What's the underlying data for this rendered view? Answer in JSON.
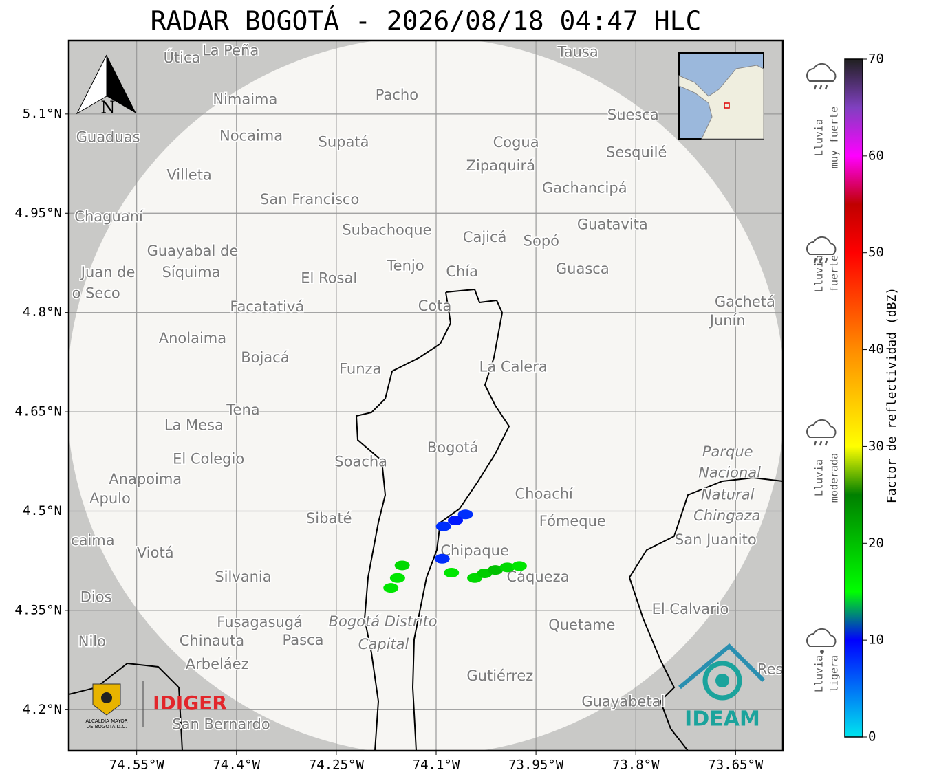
{
  "title": "RADAR BOGOTÁ - 2026/08/18 04:47 HLC",
  "map": {
    "xlim": [
      -74.652,
      -73.579
    ],
    "ylim": [
      4.138,
      5.211
    ],
    "xticks": [
      {
        "value": -74.55,
        "label": "74.55°W"
      },
      {
        "value": -74.4,
        "label": "74.4°W"
      },
      {
        "value": -74.25,
        "label": "74.25°W"
      },
      {
        "value": -74.1,
        "label": "74.1°W"
      },
      {
        "value": -73.95,
        "label": "73.95°W"
      },
      {
        "value": -73.8,
        "label": "73.8°W"
      },
      {
        "value": -73.65,
        "label": "73.65°W"
      }
    ],
    "yticks": [
      {
        "value": 5.1,
        "label": "5.1°N"
      },
      {
        "value": 4.95,
        "label": "4.95°N"
      },
      {
        "value": 4.8,
        "label": "4.8°N"
      },
      {
        "value": 4.65,
        "label": "4.65°N"
      },
      {
        "value": 4.5,
        "label": "4.5°N"
      },
      {
        "value": 4.35,
        "label": "4.35°N"
      },
      {
        "value": 4.2,
        "label": "4.2°N"
      }
    ],
    "places": [
      {
        "name": "Útica",
        "lon": -74.482,
        "lat": 5.184
      },
      {
        "name": "La Peña",
        "lon": -74.409,
        "lat": 5.195
      },
      {
        "name": "Tausa",
        "lon": -73.887,
        "lat": 5.193
      },
      {
        "name": "Pacho",
        "lon": -74.159,
        "lat": 5.128
      },
      {
        "name": "Nimaima",
        "lon": -74.387,
        "lat": 5.121
      },
      {
        "name": "Guaduas",
        "lon": -74.593,
        "lat": 5.064
      },
      {
        "name": "Nocaima",
        "lon": -74.378,
        "lat": 5.066
      },
      {
        "name": "Supatá",
        "lon": -74.239,
        "lat": 5.057
      },
      {
        "name": "Cogua",
        "lon": -73.98,
        "lat": 5.056
      },
      {
        "name": "Suesca",
        "lon": -73.804,
        "lat": 5.098
      },
      {
        "name": "Sesquilé",
        "lon": -73.799,
        "lat": 5.041
      },
      {
        "name": "Zipaquirá",
        "lon": -74.003,
        "lat": 5.021
      },
      {
        "name": "Villeta",
        "lon": -74.471,
        "lat": 5.007
      },
      {
        "name": "Gachancipá",
        "lon": -73.877,
        "lat": 4.987
      },
      {
        "name": "San Francisco",
        "lon": -74.29,
        "lat": 4.97
      },
      {
        "name": "Chaguaní",
        "lon": -74.592,
        "lat": 4.944
      },
      {
        "name": "Guatavita",
        "lon": -73.835,
        "lat": 4.932
      },
      {
        "name": "Subachoque",
        "lon": -74.174,
        "lat": 4.924
      },
      {
        "name": "Cajicá",
        "lon": -74.027,
        "lat": 4.913
      },
      {
        "name": "Sopó",
        "lon": -73.942,
        "lat": 4.907
      },
      {
        "name": "Guayabal de",
        "lon": -74.466,
        "lat": 4.892
      },
      {
        "name": "Síquima",
        "lon": -74.468,
        "lat": 4.86
      },
      {
        "name": "Tenjo",
        "lon": -74.146,
        "lat": 4.87
      },
      {
        "name": "Chía",
        "lon": -74.061,
        "lat": 4.861
      },
      {
        "name": "Guasca",
        "lon": -73.88,
        "lat": 4.865
      },
      {
        "name": "Juan de",
        "lon": -74.593,
        "lat": 4.86
      },
      {
        "name": "o Seco",
        "lon": -74.611,
        "lat": 4.828
      },
      {
        "name": "El Rosal",
        "lon": -74.261,
        "lat": 4.851
      },
      {
        "name": "Cota",
        "lon": -74.102,
        "lat": 4.809
      },
      {
        "name": "Facatativá",
        "lon": -74.354,
        "lat": 4.808
      },
      {
        "name": "Gachetá",
        "lon": -73.636,
        "lat": 4.815
      },
      {
        "name": "Junín",
        "lon": -73.662,
        "lat": 4.787
      },
      {
        "name": "Anolaima",
        "lon": -74.466,
        "lat": 4.76
      },
      {
        "name": "Bojacá",
        "lon": -74.357,
        "lat": 4.731
      },
      {
        "name": "Funza",
        "lon": -74.214,
        "lat": 4.714
      },
      {
        "name": "La Calera",
        "lon": -73.984,
        "lat": 4.717
      },
      {
        "name": "Tena",
        "lon": -74.39,
        "lat": 4.652
      },
      {
        "name": "La Mesa",
        "lon": -74.464,
        "lat": 4.629
      },
      {
        "name": "Bogotá",
        "lon": -74.075,
        "lat": 4.595,
        "kind": "capital"
      },
      {
        "name": "Soacha",
        "lon": -74.213,
        "lat": 4.574
      },
      {
        "name": "El Colegio",
        "lon": -74.442,
        "lat": 4.578
      },
      {
        "name": "Parque",
        "lon": -73.662,
        "lat": 4.589,
        "kind": "park"
      },
      {
        "name": "Nacional",
        "lon": -73.659,
        "lat": 4.557,
        "kind": "park"
      },
      {
        "name": "Natural",
        "lon": -73.662,
        "lat": 4.524,
        "kind": "park"
      },
      {
        "name": "Chingaza",
        "lon": -73.663,
        "lat": 4.492,
        "kind": "park"
      },
      {
        "name": "Anapoima",
        "lon": -74.537,
        "lat": 4.547
      },
      {
        "name": "Apulo",
        "lon": -74.59,
        "lat": 4.518
      },
      {
        "name": "Choachí",
        "lon": -73.938,
        "lat": 4.525
      },
      {
        "name": "Sibaté",
        "lon": -74.261,
        "lat": 4.488
      },
      {
        "name": "Fómeque",
        "lon": -73.895,
        "lat": 4.484
      },
      {
        "name": "San Juanito",
        "lon": -73.68,
        "lat": 4.456
      },
      {
        "name": "caima",
        "lon": -74.616,
        "lat": 4.455
      },
      {
        "name": "Viotá",
        "lon": -74.522,
        "lat": 4.436
      },
      {
        "name": "Chipaque",
        "lon": -74.042,
        "lat": 4.439
      },
      {
        "name": "Silvania",
        "lon": -74.39,
        "lat": 4.4
      },
      {
        "name": "Cáqueza",
        "lon": -73.947,
        "lat": 4.4
      },
      {
        "name": "Dios",
        "lon": -74.611,
        "lat": 4.369
      },
      {
        "name": "El Calvario",
        "lon": -73.718,
        "lat": 4.351
      },
      {
        "name": "Fusagasugá",
        "lon": -74.365,
        "lat": 4.331
      },
      {
        "name": "Quetame",
        "lon": -73.881,
        "lat": 4.327
      },
      {
        "name": "Bogotá Distrito",
        "lon": -74.18,
        "lat": 4.332,
        "kind": "district"
      },
      {
        "name": "Capital",
        "lon": -74.179,
        "lat": 4.298,
        "kind": "district"
      },
      {
        "name": "Nilo",
        "lon": -74.617,
        "lat": 4.302
      },
      {
        "name": "Chinauta",
        "lon": -74.437,
        "lat": 4.303
      },
      {
        "name": "Pasca",
        "lon": -74.3,
        "lat": 4.304
      },
      {
        "name": "Arbeláez",
        "lon": -74.429,
        "lat": 4.268
      },
      {
        "name": "Gutiérrez",
        "lon": -74.004,
        "lat": 4.25
      },
      {
        "name": "Res",
        "lon": -73.598,
        "lat": 4.26
      },
      {
        "name": "Guayabetal",
        "lon": -73.819,
        "lat": 4.211
      },
      {
        "name": "San Bernardo",
        "lon": -74.423,
        "lat": 4.177
      }
    ],
    "echoes": [
      {
        "lon": -74.042,
        "lat": 4.399,
        "dbz": 18
      },
      {
        "lon": -74.027,
        "lat": 4.406,
        "dbz": 19
      },
      {
        "lon": -74.011,
        "lat": 4.411,
        "dbz": 20
      },
      {
        "lon": -73.993,
        "lat": 4.415,
        "dbz": 18
      },
      {
        "lon": -73.975,
        "lat": 4.417,
        "dbz": 17
      },
      {
        "lon": -74.151,
        "lat": 4.418,
        "dbz": 18
      },
      {
        "lon": -74.158,
        "lat": 4.399,
        "dbz": 17
      },
      {
        "lon": -74.168,
        "lat": 4.384,
        "dbz": 17
      },
      {
        "lon": -74.077,
        "lat": 4.407,
        "dbz": 17
      },
      {
        "lon": -74.091,
        "lat": 4.428,
        "dbz": 8
      },
      {
        "lon": -74.056,
        "lat": 4.495,
        "dbz": 8
      },
      {
        "lon": -74.071,
        "lat": 4.486,
        "dbz": 9
      },
      {
        "lon": -74.089,
        "lat": 4.477,
        "dbz": 8
      }
    ]
  },
  "north_label": "N",
  "logos": {
    "alcaldia_1": "ALCALDÍA MAYOR",
    "alcaldia_2": "DE BOGOTÁ D.C.",
    "idiger": "IDIGER",
    "ideam": "IDEAM"
  },
  "colorbar": {
    "label": "Factor de reflectividad (dBZ)",
    "lim": [
      0,
      70
    ],
    "ticks": [
      0,
      10,
      20,
      30,
      40,
      50,
      60,
      70
    ]
  },
  "rain_levels": [
    [
      "Lluvia",
      "muy fuerte"
    ],
    [
      "Lluvia",
      "fuerte"
    ],
    [
      "Lluvia",
      "moderada"
    ],
    [
      "Lluvia",
      "ligera"
    ]
  ]
}
